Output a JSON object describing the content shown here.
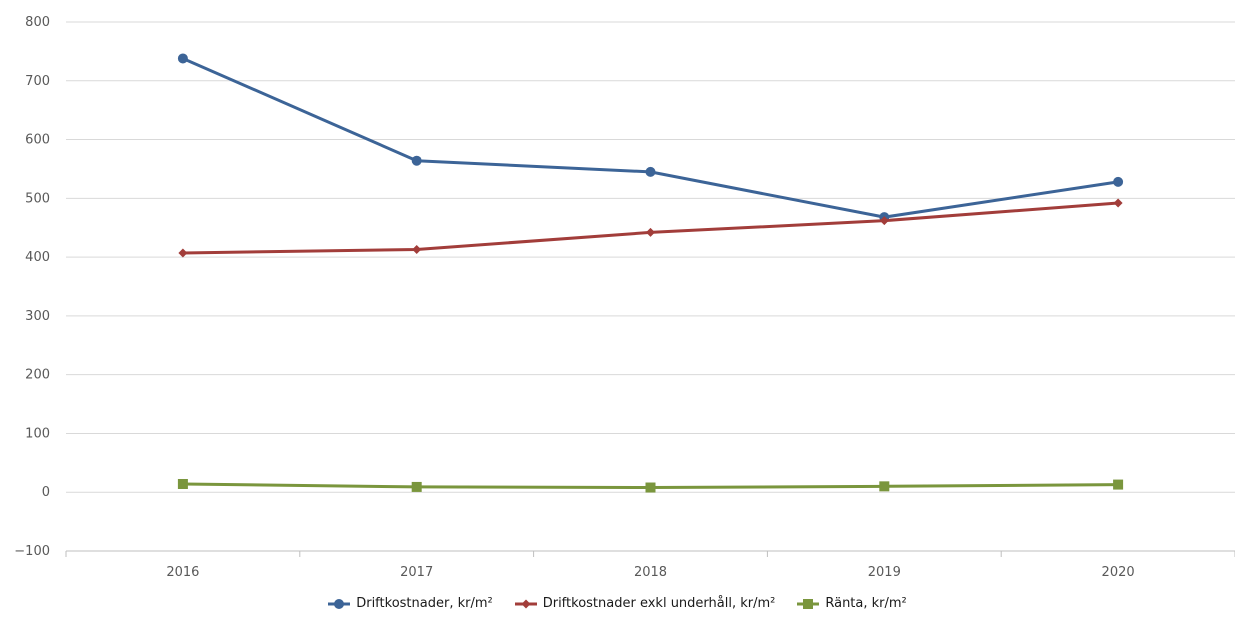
{
  "chart_data": {
    "type": "line",
    "title": "",
    "xlabel": "",
    "ylabel": "",
    "categories": [
      "2016",
      "2017",
      "2018",
      "2019",
      "2020"
    ],
    "ylim": [
      -100,
      800
    ],
    "yticks": [
      -100,
      0,
      100,
      200,
      300,
      400,
      500,
      600,
      700,
      800
    ],
    "ytick_labels": [
      "−100",
      "0",
      "100",
      "200",
      "300",
      "400",
      "500",
      "600",
      "700",
      "800"
    ],
    "grid": true,
    "legend_position": "bottom",
    "series": [
      {
        "name": "Driftkostnader, kr/m²",
        "values": [
          738,
          564,
          545,
          468,
          528
        ],
        "color": "#3c6497",
        "marker": "circle"
      },
      {
        "name": "Driftkostnader exkl underhåll, kr/m²",
        "values": [
          407,
          413,
          442,
          462,
          492
        ],
        "color": "#a23d3a",
        "marker": "diamond"
      },
      {
        "name": "Ränta, kr/m²",
        "values": [
          14,
          9,
          8,
          10,
          13
        ],
        "color": "#7a963d",
        "marker": "square"
      }
    ]
  }
}
